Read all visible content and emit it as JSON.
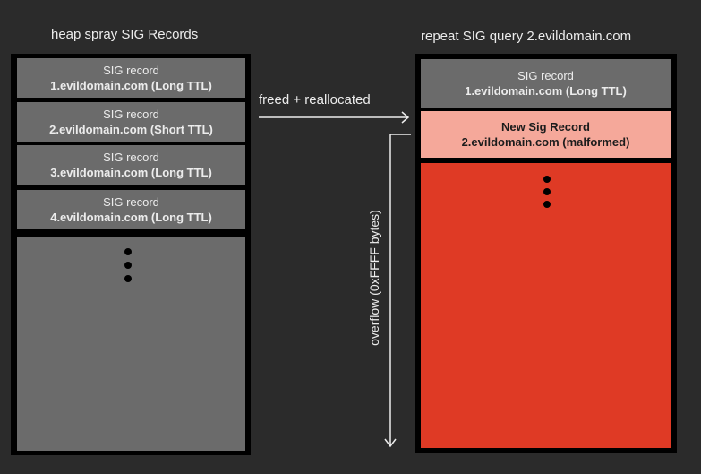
{
  "left": {
    "title": "heap spray SIG Records",
    "records": [
      {
        "line1": "SIG record",
        "line2": "1.evildomain.com (Long TTL)"
      },
      {
        "line1": "SIG record",
        "line2": "2.evildomain.com (Short TTL)"
      },
      {
        "line1": "SIG record",
        "line2": "3.evildomain.com (Long TTL)"
      },
      {
        "line1": "SIG record",
        "line2": "4.evildomain.com (Long TTL)"
      }
    ]
  },
  "right": {
    "title": "repeat SIG query 2.evildomain.com",
    "record": {
      "line1": "SIG record",
      "line2": "1.evildomain.com (Long TTL)"
    },
    "new_record": {
      "line1": "New Sig Record",
      "line2": "2.evildomain.com (malformed)"
    }
  },
  "arrow_label": "freed + reallocated",
  "overflow_label": "overflow (0xFFFF bytes)",
  "colors": {
    "background": "#2b2b2b",
    "record_gray": "#6b6b6b",
    "new_record_pink": "#f5a89a",
    "overflow_red": "#df3a25"
  }
}
